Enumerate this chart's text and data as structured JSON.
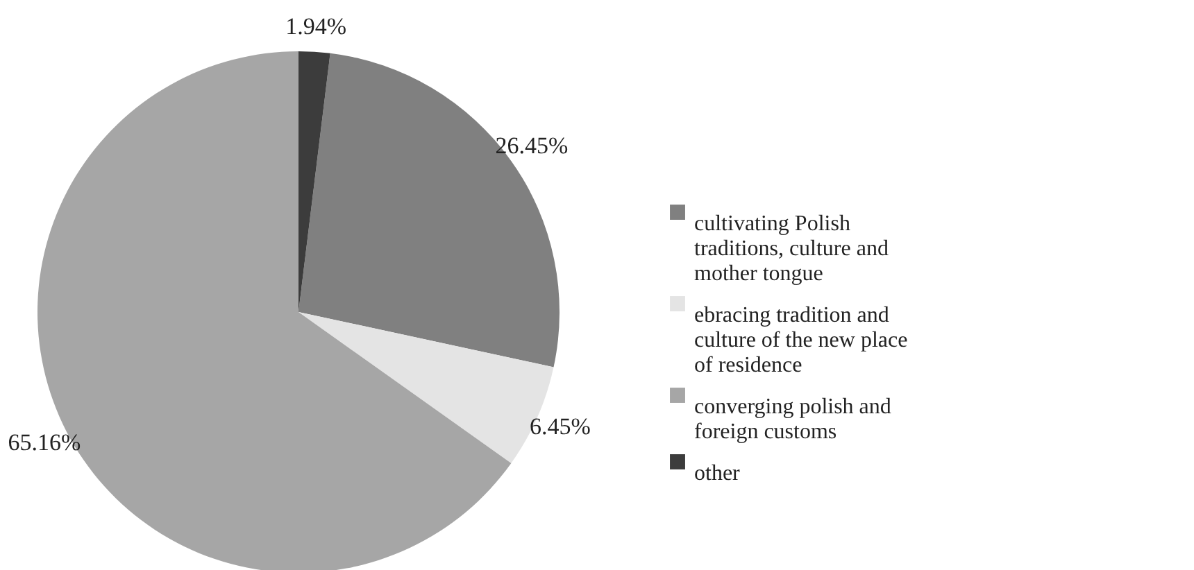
{
  "chart_data": {
    "type": "pie",
    "categories": [
      "cultivating Polish traditions, culture and mother tongue",
      "ebracing tradition and culture of the new place of residence",
      "converging polish and foreign customs",
      "other"
    ],
    "values": [
      26.45,
      6.45,
      65.16,
      1.94
    ],
    "colors": [
      "#808080",
      "#e4e4e4",
      "#a6a6a6",
      "#3c3c3c"
    ],
    "value_labels": [
      "26.45%",
      "6.45%",
      "65.16%",
      "1.94%"
    ],
    "legend": "right"
  }
}
